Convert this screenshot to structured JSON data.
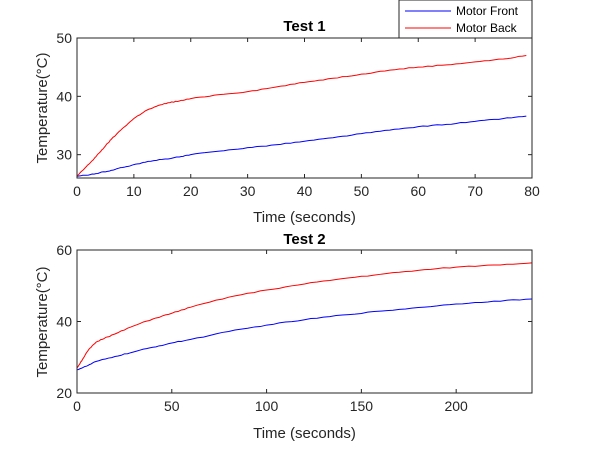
{
  "chart_data": [
    {
      "type": "line",
      "title": "Test 1",
      "xlabel": "Time (seconds)",
      "ylabel": "Temperature(°C)",
      "xlim": [
        0,
        80
      ],
      "ylim": [
        26,
        50
      ],
      "xticks": [
        0,
        10,
        20,
        30,
        40,
        50,
        60,
        70,
        80
      ],
      "yticks": [
        30,
        40,
        50
      ],
      "grid": false,
      "legend": {
        "placement": "top-right, above plot",
        "entries": [
          "Motor Front",
          "Motor Back"
        ]
      },
      "series": [
        {
          "name": "Motor Front",
          "color": "#0000ff",
          "x": [
            0,
            2,
            4,
            6,
            8,
            10,
            12,
            15,
            18,
            20,
            25,
            30,
            35,
            40,
            45,
            50,
            55,
            60,
            65,
            70,
            75,
            79
          ],
          "values": [
            26.3,
            26.5,
            26.9,
            27.3,
            27.8,
            28.3,
            28.7,
            29.2,
            29.6,
            30.0,
            30.6,
            31.2,
            31.7,
            32.3,
            32.9,
            33.6,
            34.2,
            34.8,
            35.2,
            35.7,
            36.2,
            36.6
          ]
        },
        {
          "name": "Motor Back",
          "color": "#ff0000",
          "x": [
            0,
            1,
            2,
            3,
            4,
            5,
            6,
            8,
            10,
            12,
            14,
            16,
            18,
            20,
            25,
            30,
            35,
            40,
            45,
            50,
            55,
            60,
            65,
            70,
            75,
            79
          ],
          "values": [
            26.3,
            27.3,
            28.3,
            29.3,
            30.4,
            31.5,
            32.6,
            34.5,
            36.2,
            37.5,
            38.3,
            38.9,
            39.2,
            39.6,
            40.3,
            40.8,
            41.6,
            42.4,
            43.1,
            43.8,
            44.5,
            45.0,
            45.4,
            45.9,
            46.4,
            47.0
          ]
        }
      ]
    },
    {
      "type": "line",
      "title": "Test 2",
      "xlabel": "Time (seconds)",
      "ylabel": "Temperature(°C)",
      "xlim": [
        0,
        240
      ],
      "ylim": [
        20,
        60
      ],
      "xticks": [
        0,
        50,
        100,
        150,
        200
      ],
      "yticks": [
        20,
        40,
        60
      ],
      "grid": false,
      "series": [
        {
          "name": "Motor Front",
          "color": "#0000ff",
          "x": [
            0,
            5,
            10,
            20,
            30,
            40,
            50,
            60,
            80,
            100,
            120,
            140,
            160,
            180,
            200,
            220,
            240
          ],
          "values": [
            26.5,
            27.5,
            28.8,
            30.2,
            31.5,
            32.8,
            34.0,
            35.0,
            37.2,
            39.0,
            40.5,
            41.8,
            42.9,
            43.9,
            44.9,
            45.7,
            46.3
          ]
        },
        {
          "name": "Motor Back",
          "color": "#ff0000",
          "x": [
            0,
            3,
            6,
            10,
            15,
            20,
            30,
            40,
            50,
            60,
            80,
            100,
            120,
            140,
            160,
            180,
            200,
            220,
            240
          ],
          "values": [
            27.0,
            29.5,
            32.0,
            34.2,
            35.5,
            36.5,
            38.8,
            40.7,
            42.3,
            44.0,
            46.8,
            48.8,
            50.5,
            52.0,
            53.2,
            54.3,
            55.2,
            55.8,
            56.4
          ]
        }
      ]
    }
  ]
}
